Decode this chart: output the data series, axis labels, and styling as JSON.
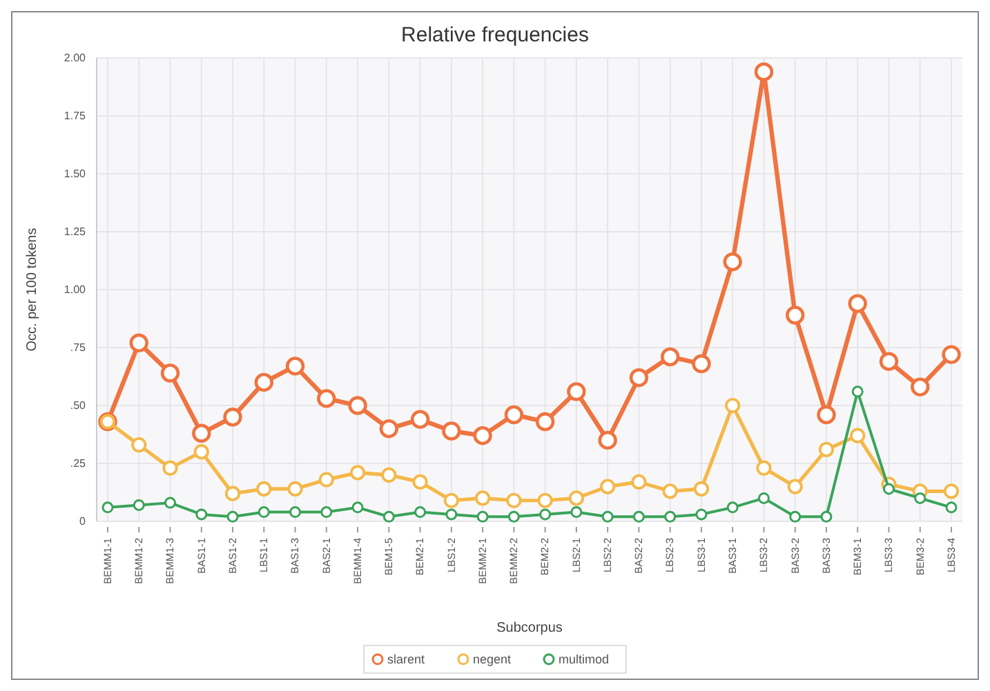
{
  "chart_data": {
    "type": "line",
    "title": "Relative frequencies",
    "xlabel": "Subcorpus",
    "ylabel": "Occ. per 100 tokens",
    "categories": [
      "BEMM1-1",
      "BEMM1-2",
      "BEMM1-3",
      "BAS1-1",
      "BAS1-2",
      "LBS1-1",
      "BAS1-3",
      "BAS2-1",
      "BEMM1-4",
      "BEM1-5",
      "BEM2-1",
      "LBS1-2",
      "BEMM2-1",
      "BEMM2-2",
      "BEM2-2",
      "LBS2-1",
      "LBS2-2",
      "BAS2-2",
      "LBS2-3",
      "LBS3-1",
      "BAS3-1",
      "LBS3-2",
      "BAS3-2",
      "BAS3-3",
      "BEM3-1",
      "LBS3-3",
      "BEM3-2",
      "LBS3-4"
    ],
    "series": [
      {
        "name": "slarent",
        "color": "#ef7440",
        "values": [
          0.43,
          0.77,
          0.64,
          0.38,
          0.45,
          0.6,
          0.67,
          0.53,
          0.5,
          0.4,
          0.44,
          0.39,
          0.37,
          0.46,
          0.43,
          0.56,
          0.35,
          0.62,
          0.71,
          0.68,
          1.12,
          1.94,
          0.89,
          0.46,
          0.94,
          0.69,
          0.58,
          0.72
        ]
      },
      {
        "name": "negent",
        "color": "#f4b84a",
        "values": [
          0.43,
          0.33,
          0.23,
          0.3,
          0.12,
          0.14,
          0.14,
          0.18,
          0.21,
          0.2,
          0.17,
          0.09,
          0.1,
          0.09,
          0.09,
          0.1,
          0.15,
          0.17,
          0.13,
          0.14,
          0.5,
          0.23,
          0.15,
          0.31,
          0.37,
          0.16,
          0.13,
          0.13
        ]
      },
      {
        "name": "multimod",
        "color": "#3aa35a",
        "values": [
          0.06,
          0.07,
          0.08,
          0.03,
          0.02,
          0.04,
          0.04,
          0.04,
          0.06,
          0.02,
          0.04,
          0.03,
          0.02,
          0.02,
          0.03,
          0.04,
          0.02,
          0.02,
          0.02,
          0.03,
          0.06,
          0.1,
          0.02,
          0.02,
          0.56,
          0.14,
          0.1,
          0.06
        ]
      }
    ],
    "ylim": [
      0,
      2
    ],
    "yticks": [
      0,
      {
        "value": 0.25,
        "label": ".25"
      },
      {
        "value": 0.5,
        "label": ".50"
      },
      {
        "value": 0.75,
        "label": ".75"
      },
      {
        "value": 1,
        "label": "1.00"
      },
      {
        "value": 1.25,
        "label": "1.25"
      },
      {
        "value": 1.5,
        "label": "1.50"
      },
      {
        "value": 1.75,
        "label": "1.75"
      },
      {
        "value": 2,
        "label": "2.00"
      }
    ],
    "grid": true,
    "legend": "bottom",
    "marker": "circle",
    "line_style": "solid"
  }
}
